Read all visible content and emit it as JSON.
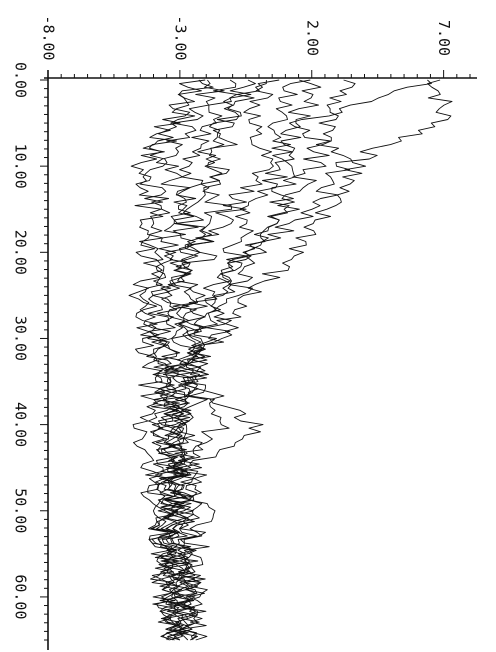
{
  "chart_data": {
    "type": "line",
    "title": "",
    "xlabel": "",
    "ylabel": "",
    "orientation": "rotated-90-clockwise",
    "xlim": [
      0,
      65
    ],
    "ylim": [
      -8,
      8
    ],
    "x_ticks": [
      0,
      10,
      20,
      30,
      40,
      50,
      60
    ],
    "x_tick_labels": [
      "0.00",
      "10.00",
      "20.00",
      "30.00",
      "40.00",
      "50.00",
      "60.00"
    ],
    "y_ticks": [
      -8,
      -3,
      2,
      7
    ],
    "y_tick_labels": [
      "-8.00",
      "-3.00",
      "2.00",
      "7.00"
    ],
    "grid": false,
    "line_color": "#111111",
    "x": [
      0,
      5,
      10,
      15,
      20,
      25,
      30,
      35,
      40,
      45,
      50,
      55,
      60,
      65
    ],
    "series": [
      {
        "values": [
          6.8,
          7.0,
          3.0,
          2.2,
          -0.5,
          -1.5,
          -2.5,
          -3.0,
          -3.2,
          -3.0,
          -2.8,
          -2.6,
          -2.4,
          -2.5
        ]
      },
      {
        "values": [
          6.5,
          1.5,
          3.8,
          2.4,
          1.5,
          -0.5,
          -1.5,
          -2.8,
          -3.5,
          -3.1,
          -3.0,
          -2.9,
          -2.7,
          -2.6
        ]
      },
      {
        "values": [
          3.5,
          2.5,
          2.0,
          1.0,
          -0.2,
          -0.8,
          -1.8,
          -2.5,
          -3.0,
          -3.3,
          -3.0,
          -2.8,
          -2.9,
          -3.0
        ]
      },
      {
        "values": [
          2.0,
          1.5,
          1.0,
          -0.5,
          -1.0,
          -1.5,
          -2.2,
          -2.5,
          0.0,
          -2.5,
          -2.0,
          -2.6,
          -2.8,
          -2.7
        ]
      },
      {
        "values": [
          1.5,
          0.5,
          1.2,
          0.8,
          -0.5,
          -2.0,
          -2.8,
          -2.5,
          -1.5,
          -2.8,
          -3.2,
          -3.0,
          -2.8,
          -2.6
        ]
      },
      {
        "values": [
          0.5,
          -0.5,
          0.2,
          -1.0,
          -2.5,
          -3.0,
          -2.0,
          -3.5,
          -3.8,
          -3.2,
          -3.0,
          -3.3,
          -3.0,
          -3.2
        ]
      },
      {
        "values": [
          -0.5,
          -1.2,
          -1.5,
          -2.5,
          -3.0,
          -2.5,
          -3.5,
          -3.0,
          -2.8,
          -3.5,
          -3.2,
          -3.4,
          -3.1,
          -3.0
        ]
      },
      {
        "values": [
          -1.0,
          -2.0,
          -2.5,
          -3.0,
          -2.0,
          -3.5,
          -3.8,
          -3.2,
          -3.5,
          -3.0,
          -3.6,
          -3.2,
          -3.4,
          -3.3
        ]
      },
      {
        "values": [
          -2.0,
          -3.5,
          -3.8,
          -4.2,
          -4.0,
          -4.5,
          -4.2,
          -4.0,
          -4.5,
          -4.3,
          -3.8,
          -3.6,
          -3.5,
          -3.4
        ]
      },
      {
        "values": [
          -1.5,
          -2.8,
          -3.5,
          -2.8,
          -3.5,
          -4.2,
          -3.8,
          -3.6,
          -3.2,
          -3.8,
          -3.6,
          -3.5,
          -3.3,
          -3.4
        ]
      },
      {
        "values": [
          -2.5,
          -3.0,
          -4.5,
          -3.8,
          -4.2,
          -3.8,
          -4.0,
          -3.5,
          -3.6,
          -3.4,
          -3.5,
          -3.7,
          -3.6,
          -3.5
        ]
      },
      {
        "values": [
          0.0,
          -1.5,
          -2.0,
          -1.5,
          -2.8,
          -3.2,
          -3.0,
          -2.2,
          -2.5,
          -2.8,
          -2.5,
          -2.4,
          -2.6,
          -2.4
        ]
      }
    ]
  }
}
